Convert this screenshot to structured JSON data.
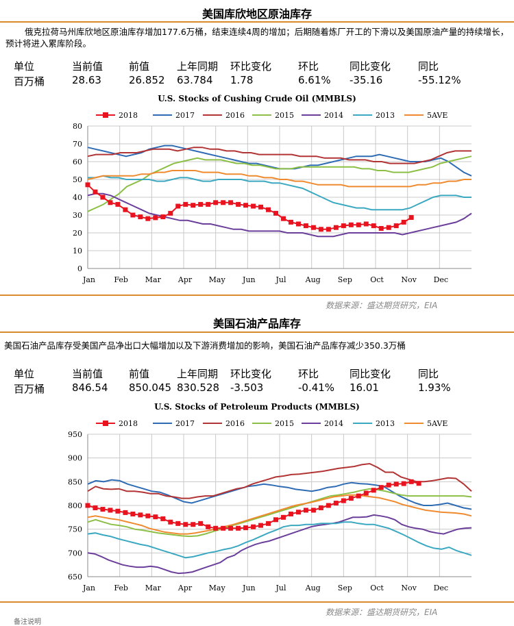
{
  "section1": {
    "title": "美国库欣地区原油库存",
    "desc": "俄克拉荷马州库欣地区原油库存增加177.6万桶，结束连续4周的增加；后期随着炼厂开工的下滑以及美国原油产量的持续增长，预计将进入累库阶段。",
    "headers": [
      "单位",
      "当前值",
      "前值",
      "上年同期",
      "环比变化",
      "环比",
      "同比变化",
      "同比"
    ],
    "values": [
      "百万桶",
      "28.63",
      "26.852",
      "63.784",
      "1.78",
      "6.61%",
      "-35.16",
      "-55.12%"
    ],
    "source": "数据来源：盛达期货研究，EIA"
  },
  "section2": {
    "title": "美国石油产品库存",
    "desc": "美国石油产品库存受美国产品净出口大幅增加以及下游消费增加的影响，美国石油产品库存减少350.3万桶",
    "headers": [
      "单位",
      "当前值",
      "前值",
      "上年同期",
      "环比变化",
      "环比",
      "同比变化",
      "同比"
    ],
    "values": [
      "百万桶",
      "846.54",
      "850.045",
      "830.528",
      "-3.503",
      "-0.41%",
      "16.01",
      "1.93%"
    ],
    "source": "数据来源：盛达期货研究，EIA"
  },
  "footer": "备注说明",
  "chart_data": [
    {
      "type": "line",
      "title": "U.S. Stocks of Cushing Crude Oil (MMBLS)",
      "x_ticks": [
        "Jan",
        "Feb",
        "Mar",
        "Apr",
        "May",
        "Jun",
        "Jul",
        "Aug",
        "Sep",
        "Oct",
        "Nov",
        "Dec"
      ],
      "ylim": [
        0,
        80
      ],
      "y_ticks": [
        0,
        10,
        20,
        30,
        40,
        50,
        60,
        70,
        80
      ],
      "grid": true,
      "legend": "top",
      "series": [
        {
          "name": "2018",
          "color": "#e8131f",
          "marker": "square",
          "values": [
            47,
            43,
            40,
            37,
            36,
            33,
            30,
            29,
            28,
            28.5,
            29,
            31,
            35,
            36,
            35.5,
            36,
            36,
            37,
            37,
            37,
            36,
            35.5,
            35,
            34.5,
            33,
            31,
            28,
            26,
            25,
            24,
            23,
            22,
            22,
            23,
            24,
            24.5,
            24.5,
            25,
            24,
            22.5,
            23,
            24,
            26,
            28.63
          ]
        },
        {
          "name": "2017",
          "color": "#2e6bb5",
          "values": [
            68,
            67,
            66,
            65,
            64,
            63,
            64,
            65,
            67,
            68,
            69,
            69,
            68,
            67,
            66,
            65,
            64,
            63,
            62,
            61,
            60,
            59,
            59,
            58,
            57,
            56,
            56,
            56,
            57,
            58,
            58,
            59,
            60,
            61,
            62,
            63,
            63,
            63,
            64,
            63,
            62,
            61,
            60,
            60,
            60,
            61,
            62,
            60,
            57,
            54,
            52
          ]
        },
        {
          "name": "2016",
          "color": "#b23333",
          "values": [
            63,
            64,
            64,
            64,
            65,
            65,
            65,
            66,
            67,
            67,
            67,
            66,
            67,
            68,
            68,
            67,
            67,
            66,
            66,
            65,
            65,
            64,
            64,
            64,
            64,
            64,
            63,
            63,
            63,
            62,
            62,
            62,
            61,
            61,
            61,
            60,
            60,
            59,
            59,
            59,
            59,
            60,
            61,
            63,
            65,
            66,
            66,
            66
          ]
        },
        {
          "name": "2015",
          "color": "#8cbf45",
          "values": [
            32,
            34,
            36,
            39,
            42,
            46,
            48,
            50,
            53,
            55,
            57,
            59,
            60,
            61,
            62,
            61,
            61,
            61,
            60,
            59,
            59,
            58,
            58,
            57,
            56,
            56,
            56,
            57,
            57,
            57,
            57,
            57,
            57,
            57,
            57,
            56,
            56,
            55,
            55,
            54,
            54,
            54,
            55,
            56,
            57,
            59,
            60,
            61,
            62,
            63
          ]
        },
        {
          "name": "2014",
          "color": "#6a3e9a",
          "values": [
            41,
            42,
            42,
            41,
            39,
            37,
            35,
            33,
            31,
            30,
            29,
            28,
            27,
            27,
            26,
            25,
            25,
            24,
            23,
            22,
            22,
            21,
            21,
            21,
            21,
            21,
            20,
            20,
            20,
            19,
            18,
            18,
            18,
            19,
            20,
            20,
            20,
            20,
            20,
            20,
            20,
            19,
            20,
            21,
            22,
            23,
            24,
            25,
            26,
            28,
            31
          ]
        },
        {
          "name": "2013",
          "color": "#3aa8c1",
          "values": [
            51,
            51,
            52,
            51,
            51,
            50,
            50,
            50,
            50,
            49,
            49,
            50,
            51,
            51,
            50,
            49,
            49,
            50,
            50,
            50,
            50,
            49,
            49,
            49,
            48,
            48,
            47,
            46,
            45,
            43,
            41,
            39,
            37,
            36,
            35,
            34,
            34,
            33,
            33,
            33,
            33,
            33,
            34,
            36,
            38,
            40,
            41,
            41,
            41,
            40,
            40
          ]
        },
        {
          "name": "5AVE",
          "color": "#f08a2e",
          "values": [
            50,
            51,
            52,
            52,
            52,
            52,
            52,
            53,
            53,
            54,
            54,
            55,
            55,
            55,
            55,
            54,
            54,
            54,
            53,
            53,
            53,
            52,
            52,
            51,
            51,
            50,
            50,
            49,
            49,
            48,
            47,
            47,
            47,
            47,
            46,
            46,
            46,
            46,
            46,
            46,
            46,
            46,
            46,
            47,
            47,
            48,
            48,
            49,
            49,
            50,
            50
          ]
        }
      ]
    },
    {
      "type": "line",
      "title": "U.S. Stocks of Petroleum Products (MMBLS)",
      "x_ticks": [
        "Jan",
        "Feb",
        "Mar",
        "Apr",
        "May",
        "Jun",
        "Jul",
        "Aug",
        "Sep",
        "Oct",
        "Nov",
        "Dec"
      ],
      "ylim": [
        650,
        950
      ],
      "y_ticks": [
        650,
        700,
        750,
        800,
        850,
        900,
        950
      ],
      "grid": true,
      "legend": "top",
      "series": [
        {
          "name": "2018",
          "color": "#e8131f",
          "marker": "square",
          "values": [
            800,
            795,
            792,
            790,
            788,
            785,
            782,
            780,
            778,
            776,
            772,
            765,
            762,
            760,
            760,
            762,
            755,
            752,
            752,
            752,
            752,
            753,
            755,
            758,
            762,
            770,
            775,
            782,
            786,
            790,
            790,
            795,
            800,
            805,
            810,
            815,
            820,
            826,
            832,
            838,
            843,
            845,
            846,
            850,
            846.54
          ]
        },
        {
          "name": "2017",
          "color": "#2e6bb5",
          "values": [
            845,
            852,
            850,
            854,
            852,
            845,
            840,
            835,
            830,
            828,
            822,
            815,
            808,
            805,
            810,
            815,
            820,
            825,
            830,
            835,
            840,
            842,
            845,
            843,
            840,
            838,
            834,
            832,
            830,
            833,
            838,
            840,
            845,
            848,
            846,
            845,
            843,
            840,
            830,
            820,
            812,
            805,
            800,
            800,
            802,
            805,
            800,
            795,
            792
          ]
        },
        {
          "name": "2016",
          "color": "#b23333",
          "values": [
            830,
            840,
            835,
            834,
            835,
            830,
            830,
            828,
            825,
            825,
            820,
            818,
            815,
            815,
            818,
            820,
            820,
            825,
            830,
            835,
            838,
            845,
            850,
            855,
            860,
            862,
            865,
            866,
            868,
            870,
            872,
            875,
            878,
            880,
            882,
            886,
            888,
            880,
            870,
            870,
            860,
            855,
            850,
            850,
            852,
            855,
            858,
            857,
            845,
            830
          ]
        },
        {
          "name": "2015",
          "color": "#8cbf45",
          "values": [
            765,
            770,
            765,
            760,
            758,
            755,
            750,
            748,
            745,
            742,
            740,
            738,
            736,
            735,
            736,
            740,
            745,
            750,
            756,
            760,
            765,
            770,
            775,
            780,
            785,
            790,
            795,
            800,
            805,
            810,
            815,
            820,
            822,
            825,
            828,
            832,
            835,
            833,
            830,
            826,
            822,
            820,
            820,
            820,
            820,
            820,
            820,
            820,
            820,
            818
          ]
        },
        {
          "name": "2014",
          "color": "#6a3e9a",
          "values": [
            700,
            698,
            692,
            685,
            680,
            675,
            672,
            670,
            670,
            672,
            670,
            665,
            660,
            657,
            658,
            660,
            665,
            670,
            675,
            680,
            690,
            695,
            705,
            712,
            718,
            722,
            725,
            730,
            735,
            740,
            745,
            750,
            755,
            758,
            760,
            762,
            765,
            770,
            775,
            775,
            776,
            780,
            778,
            775,
            770,
            760,
            755,
            752,
            750,
            745,
            742,
            740,
            745,
            750,
            752,
            753
          ]
        },
        {
          "name": "2013",
          "color": "#3aa8c1",
          "values": [
            740,
            742,
            738,
            735,
            730,
            726,
            722,
            718,
            715,
            710,
            705,
            700,
            695,
            690,
            692,
            696,
            700,
            703,
            707,
            710,
            715,
            722,
            728,
            735,
            742,
            748,
            755,
            758,
            758,
            760,
            760,
            762,
            762,
            762,
            765,
            765,
            762,
            760,
            760,
            756,
            752,
            745,
            738,
            730,
            722,
            715,
            710,
            708,
            712,
            705,
            700,
            695
          ]
        },
        {
          "name": "5AVE",
          "color": "#f08a2e",
          "values": [
            775,
            778,
            775,
            772,
            770,
            766,
            762,
            758,
            752,
            748,
            744,
            742,
            740,
            740,
            742,
            745,
            748,
            752,
            756,
            760,
            765,
            770,
            775,
            780,
            785,
            790,
            795,
            800,
            803,
            806,
            810,
            814,
            818,
            820,
            822,
            822,
            820,
            818,
            816,
            812,
            808,
            802,
            798,
            794,
            790,
            788,
            786,
            785,
            784,
            782,
            778
          ]
        }
      ]
    }
  ]
}
